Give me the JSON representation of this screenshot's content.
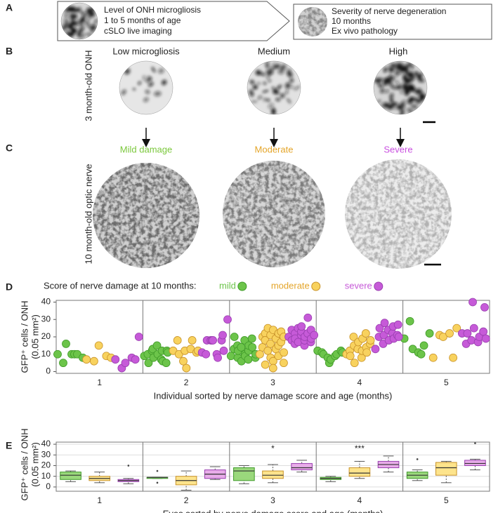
{
  "panel_labels": [
    "A",
    "B",
    "C",
    "D",
    "E"
  ],
  "panel_a": {
    "left_box": [
      "Level of ONH microgliosis",
      "1 to 5 months of age",
      "cSLO live imaging"
    ],
    "right_box": [
      "Severity of nerve degeneration",
      "10 months",
      "Ex vivo pathology"
    ]
  },
  "panel_b": {
    "row_label": "3 month-old ONH",
    "columns": [
      "Low microgliosis",
      "Medium",
      "High"
    ]
  },
  "panel_c": {
    "row_label": "10 month-old optic nerve",
    "columns": [
      {
        "label": "Mild damage",
        "color": "#7bc83c"
      },
      {
        "label": "Moderate",
        "color": "#e4a52a"
      },
      {
        "label": "Severe",
        "color": "#c94fe0"
      }
    ]
  },
  "chart_data": [
    {
      "type": "scatter",
      "legend_title": "Score of nerve damage at 10 months:",
      "y_label": [
        "GFP⁺ cells / ONH",
        "(0.05 mm²)"
      ],
      "x_label": "Individual sorted by nerve damage score and age (months)",
      "categories": [
        "1",
        "2",
        "3",
        "4",
        "5"
      ],
      "ylim": [
        -1,
        41
      ],
      "yticks": [
        0,
        10,
        20,
        30,
        40
      ],
      "series": [
        {
          "name": "mild",
          "color": "#6cc44a",
          "values": [
            [
              10,
              5,
              16,
              10,
              10,
              10,
              8
            ],
            [
              9,
              10,
              5,
              12,
              13,
              8,
              15,
              10,
              7,
              12,
              6,
              5,
              12,
              11
            ],
            [
              9,
              13,
              20,
              15,
              8,
              12,
              14,
              6,
              18,
              10,
              9,
              7,
              12,
              15,
              19,
              14,
              8,
              10
            ],
            [
              12,
              11,
              10,
              8,
              5,
              7,
              9,
              10,
              12,
              11
            ],
            [
              19,
              29,
              13,
              11,
              10,
              15,
              22
            ]
          ]
        },
        {
          "name": "moderate",
          "color": "#f8d25e",
          "values": [
            [
              7,
              6,
              15,
              9,
              8
            ],
            [
              12,
              18,
              10,
              6,
              12,
              2,
              13,
              18,
              11,
              12
            ],
            [
              10,
              20,
              14,
              4,
              22,
              18,
              25,
              12,
              8,
              21,
              16,
              24,
              6,
              2,
              13,
              19,
              22,
              15,
              9,
              23,
              17,
              11,
              20,
              5
            ],
            [
              10,
              12,
              9,
              20,
              15,
              5,
              13,
              17,
              8,
              12,
              19,
              22,
              14,
              11,
              16,
              18
            ],
            [
              8,
              21,
              20,
              22,
              8,
              25
            ]
          ]
        },
        {
          "name": "severe",
          "color": "#c65ad8",
          "values": [
            [
              7,
              2,
              5,
              8,
              7,
              20
            ],
            [
              11,
              10,
              18,
              18,
              18,
              18,
              10,
              8,
              18,
              21,
              12,
              30
            ],
            [
              20,
              24,
              18,
              16,
              22,
              19,
              25,
              17,
              21,
              23,
              26,
              15,
              18,
              20,
              22,
              31,
              17,
              24,
              19,
              21
            ],
            [
              13,
              20,
              25,
              16,
              21,
              28,
              24,
              18,
              22,
              26,
              19,
              21,
              27,
              20
            ],
            [
              22,
              16,
              22,
              18,
              40,
              25,
              17,
              20,
              23,
              37,
              19
            ]
          ]
        }
      ]
    },
    {
      "type": "box",
      "y_label": [
        "GFP⁺ cells / ONH",
        "(0.05 mm²)"
      ],
      "x_label": "Eyes sorted by nerve damage score and age (months)",
      "categories": [
        "1",
        "2",
        "3",
        "4",
        "5"
      ],
      "ylim": [
        -4,
        42
      ],
      "yticks": [
        0,
        10,
        20,
        30,
        40
      ],
      "grid": true,
      "annotations": [
        null,
        null,
        "*",
        "***",
        null
      ],
      "series": [
        {
          "color": "#9ad87c",
          "boxes": [
            {
              "min": 5,
              "q1": 7,
              "median": 11,
              "q3": 14,
              "max": 15,
              "outliers": []
            },
            {
              "min": 8,
              "q1": 8,
              "median": 9,
              "q3": 9,
              "max": 9,
              "outliers": [
                4,
                15
              ]
            },
            {
              "min": 3,
              "q1": 6,
              "median": 15,
              "q3": 18,
              "max": 20,
              "outliers": []
            },
            {
              "min": 5,
              "q1": 7,
              "median": 8,
              "q3": 9,
              "max": 10,
              "outliers": []
            },
            {
              "min": 6,
              "q1": 8,
              "median": 11,
              "q3": 14,
              "max": 16,
              "outliers": [
                26
              ]
            }
          ]
        },
        {
          "color": "#fde48c",
          "boxes": [
            {
              "min": 4,
              "q1": 6,
              "median": 8,
              "q3": 10,
              "max": 14,
              "outliers": []
            },
            {
              "min": -3,
              "q1": 2,
              "median": 6,
              "q3": 10,
              "max": 15,
              "outliers": []
            },
            {
              "min": 4,
              "q1": 8,
              "median": 11,
              "q3": 15,
              "max": 21,
              "outliers": []
            },
            {
              "min": 8,
              "q1": 10,
              "median": 13,
              "q3": 18,
              "max": 24,
              "outliers": []
            },
            {
              "min": 4,
              "q1": 11,
              "median": 18,
              "q3": 23,
              "max": 24,
              "outliers": []
            }
          ]
        },
        {
          "color": "#e8ace9",
          "boxes": [
            {
              "min": 3,
              "q1": 5,
              "median": 6,
              "q3": 7,
              "max": 8,
              "outliers": [
                20
              ]
            },
            {
              "min": 7,
              "q1": 8,
              "median": 12,
              "q3": 16,
              "max": 19,
              "outliers": []
            },
            {
              "min": 14,
              "q1": 16,
              "median": 18,
              "q3": 22,
              "max": 25,
              "outliers": []
            },
            {
              "min": 14,
              "q1": 18,
              "median": 21,
              "q3": 24,
              "max": 29,
              "outliers": []
            },
            {
              "min": 16,
              "q1": 20,
              "median": 22,
              "q3": 25,
              "max": 26,
              "outliers": [
                41
              ]
            }
          ]
        }
      ]
    }
  ]
}
